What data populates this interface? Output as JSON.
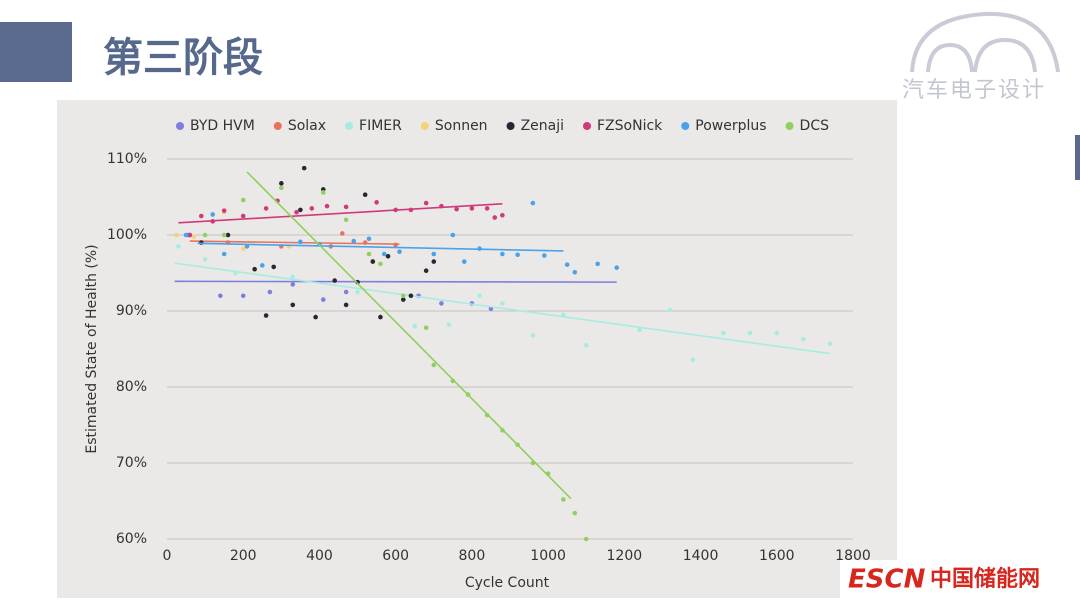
{
  "header": {
    "title": "第三阶段"
  },
  "logo": {
    "text": "汽车电子设计"
  },
  "watermark": {
    "brand": "ESCN",
    "name": "中国储能网"
  },
  "chart_data": {
    "type": "scatter",
    "x_label": "Cycle Count",
    "y_label": "Estimated State of Health (%)",
    "xlim": [
      0,
      1800
    ],
    "xticks": [
      0,
      200,
      400,
      600,
      800,
      1000,
      1200,
      1400,
      1600,
      1800
    ],
    "ylim": [
      60,
      110
    ],
    "yticks": [
      {
        "value": 60,
        "label": "60%"
      },
      {
        "value": 70,
        "label": "70%"
      },
      {
        "value": 80,
        "label": "80%"
      },
      {
        "value": 90,
        "label": "90%"
      },
      {
        "value": 100,
        "label": "100%"
      },
      {
        "value": 110,
        "label": "110%"
      }
    ],
    "grid": true,
    "legend": "top",
    "series": [
      {
        "name": "BYD HVM",
        "color": "#7d7fe0",
        "x": [
          55,
          140,
          200,
          270,
          330,
          410,
          470,
          660,
          720,
          800,
          850
        ],
        "values": [
          100,
          92,
          92,
          92.5,
          93.5,
          91.5,
          92.5,
          92,
          91,
          91,
          90.3
        ],
        "trend": {
          "x": [
            20,
            1180
          ],
          "values": [
            93.9,
            93.8
          ]
        }
      },
      {
        "name": "Solax",
        "color": "#e8735a",
        "x": [
          60,
          160,
          300,
          430,
          460,
          520,
          600
        ],
        "values": [
          100,
          99,
          98.5,
          98.5,
          100.2,
          99,
          98.7
        ],
        "trend": {
          "x": [
            60,
            610
          ],
          "values": [
            99.2,
            98.8
          ]
        }
      },
      {
        "name": "FIMER",
        "color": "#a6ece0",
        "x": [
          30,
          100,
          180,
          330,
          500,
          650,
          740,
          820,
          880,
          960,
          1040,
          1100,
          1240,
          1320,
          1380,
          1460,
          1530,
          1600,
          1670,
          1740
        ],
        "values": [
          98.5,
          96.8,
          95,
          94.5,
          92.5,
          88,
          88.2,
          92,
          91,
          86.8,
          89.5,
          85.5,
          87.5,
          90.1,
          83.6,
          87.1,
          87.1,
          87.1,
          86.3,
          85.7
        ],
        "trend": {
          "x": [
            20,
            1740
          ],
          "values": [
            96.3,
            84.4
          ]
        }
      },
      {
        "name": "Sonnen",
        "color": "#f5d27a",
        "x": [
          25,
          70,
          150,
          200,
          320,
          540
        ],
        "values": [
          100,
          99.8,
          103,
          98.2,
          98.5,
          96.6
        ]
      },
      {
        "name": "Zenaji",
        "color": "#2b2536",
        "x": [
          90,
          160,
          230,
          260,
          280,
          300,
          330,
          350,
          360,
          390,
          410,
          440,
          470,
          500,
          520,
          540,
          560,
          580,
          620,
          640,
          680,
          700
        ],
        "values": [
          99,
          100,
          95.5,
          89.4,
          95.8,
          106.8,
          90.8,
          103.3,
          108.8,
          89.2,
          106,
          94,
          90.8,
          93.8,
          105.3,
          96.5,
          89.2,
          97.2,
          91.5,
          92,
          95.3,
          96.5
        ]
      },
      {
        "name": "FZSoNick",
        "color": "#d03a7a",
        "x": [
          60,
          90,
          120,
          150,
          200,
          260,
          290,
          340,
          380,
          420,
          470,
          550,
          600,
          640,
          680,
          720,
          760,
          800,
          840,
          860,
          880
        ],
        "values": [
          100,
          102.5,
          101.8,
          103.2,
          102.5,
          103.5,
          104.5,
          103,
          103.5,
          103.8,
          103.7,
          104.3,
          103.3,
          103.3,
          104.2,
          103.8,
          103.4,
          103.5,
          103.5,
          102.3,
          102.6
        ],
        "trend": {
          "x": [
            30,
            880
          ],
          "values": [
            101.6,
            104.1
          ]
        }
      },
      {
        "name": "Powerplus",
        "color": "#4aa3ea",
        "x": [
          50,
          120,
          150,
          210,
          250,
          350,
          400,
          490,
          530,
          570,
          610,
          700,
          750,
          780,
          820,
          880,
          920,
          960,
          990,
          1050,
          1070,
          1130,
          1180
        ],
        "values": [
          100,
          102.7,
          97.5,
          98.5,
          96,
          99.1,
          98.8,
          99.2,
          99.5,
          97.5,
          97.8,
          97.5,
          100,
          96.5,
          98.2,
          97.5,
          97.4,
          104.2,
          97.3,
          96.1,
          95.1,
          96.2,
          95.7
        ],
        "trend": {
          "x": [
            80,
            1040
          ],
          "values": [
            98.9,
            97.9
          ]
        }
      },
      {
        "name": "DCS",
        "color": "#8fd060",
        "x": [
          100,
          150,
          200,
          300,
          410,
          470,
          530,
          560,
          620,
          680,
          700,
          750,
          790,
          840,
          880,
          920,
          960,
          1000,
          1040,
          1070,
          1100
        ],
        "values": [
          100,
          100,
          104.6,
          106.2,
          105.6,
          102,
          97.5,
          96.2,
          92,
          87.8,
          82.9,
          80.8,
          79,
          76.3,
          74.3,
          72.4,
          70,
          68.6,
          65.2,
          63.4,
          60
        ],
        "trend": {
          "x": [
            210,
            1060
          ],
          "values": [
            108.3,
            65.3
          ]
        }
      }
    ]
  }
}
